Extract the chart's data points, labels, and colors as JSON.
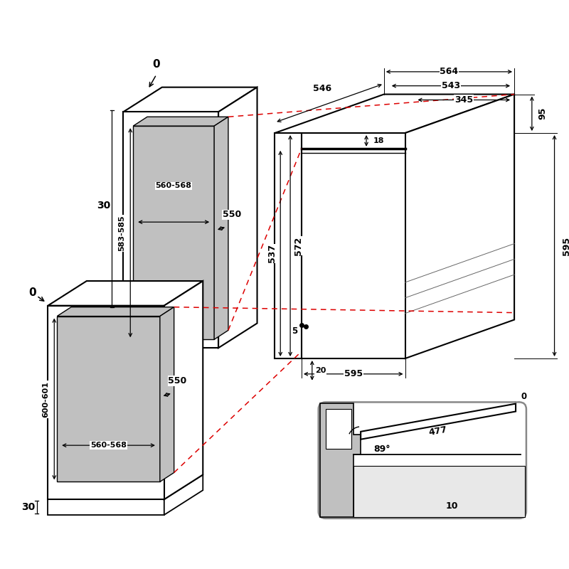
{
  "bg_color": "#ffffff",
  "line_color": "#000000",
  "gray_fill": "#c0c0c0",
  "red_dashed": "#dd0000",
  "dims": {
    "top_label_0": "0",
    "left_label_30_top": "30",
    "left_label_0": "0",
    "left_label_30_bot": "30",
    "upper_cavity_height": "583-585",
    "upper_cavity_width": "560-568",
    "upper_cavity_depth": "550",
    "lower_cavity_height": "600-601",
    "lower_cavity_width": "560-568",
    "lower_cavity_depth": "550",
    "depth_546": "546",
    "width_564": "564",
    "width_543": "543",
    "width_345": "345",
    "height_18": "18",
    "height_537": "537",
    "height_572": "572",
    "height_595_right": "595",
    "height_95": "95",
    "width_595": "595",
    "offset_5": "5",
    "offset_20": "20",
    "door_477": "477",
    "door_angle": "89°",
    "door_0": "0",
    "door_10": "10"
  }
}
